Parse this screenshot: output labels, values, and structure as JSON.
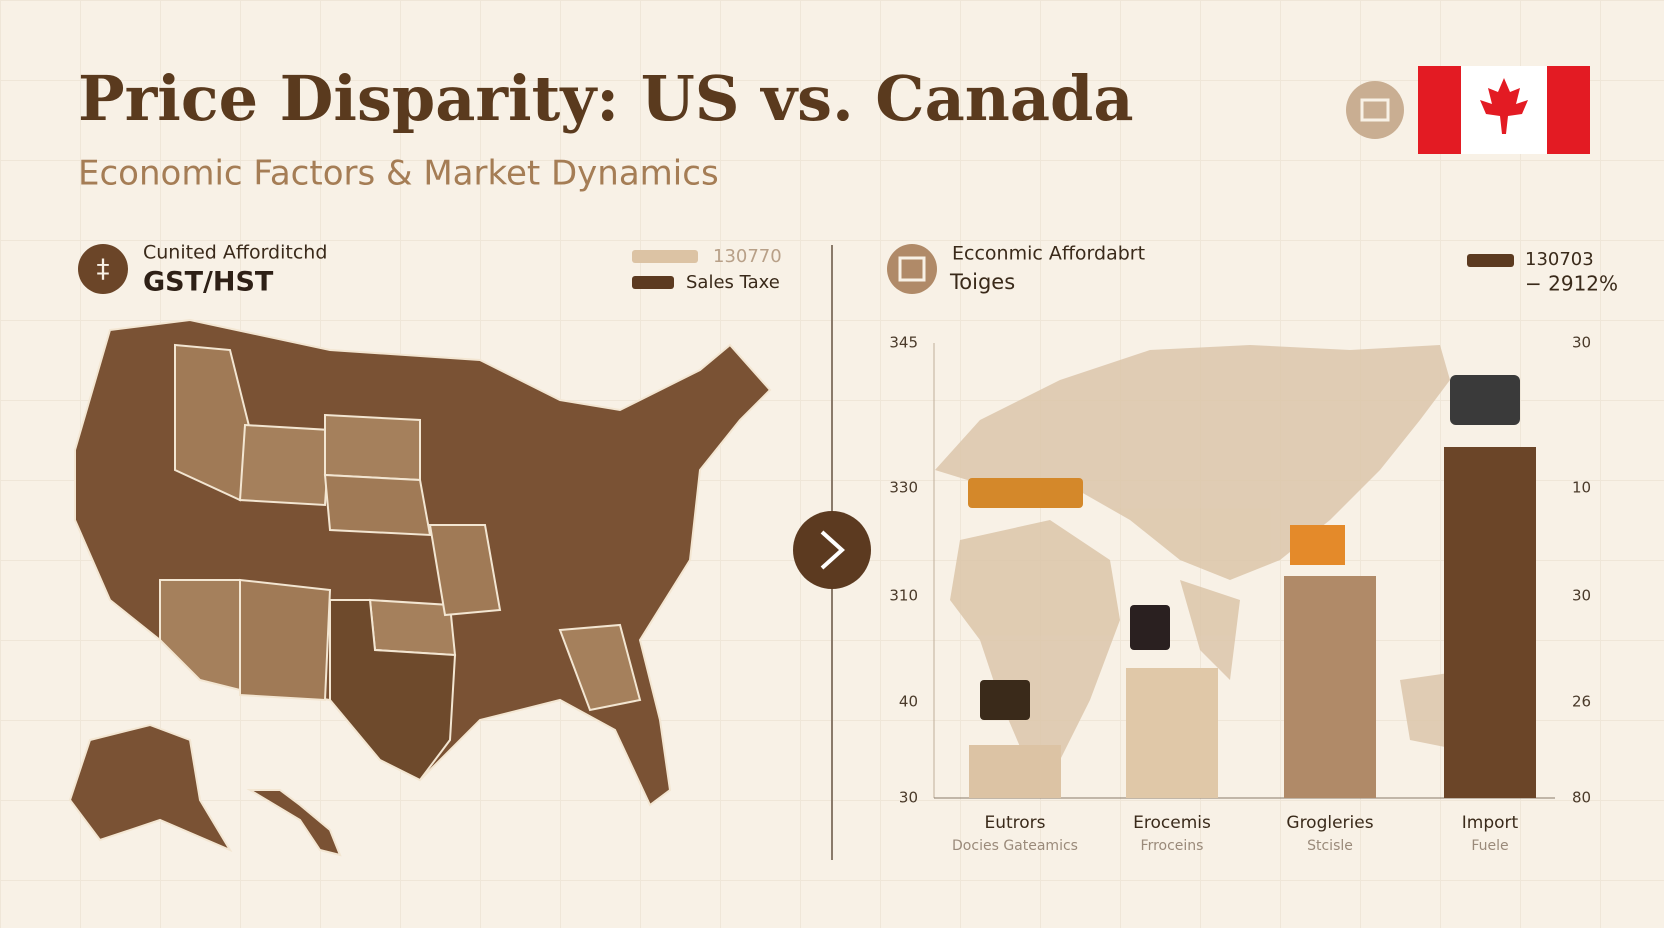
{
  "header": {
    "title": "Price Disparity: US vs. Canada",
    "subtitle": "Economic Factors & Market Dynamics"
  },
  "left_panel": {
    "label": "Cunited Afforditchd",
    "heading": "GST/HST",
    "legend": [
      "130770",
      "Sales Taxe"
    ]
  },
  "right_panel": {
    "label": "Ecconmic Affordabrt",
    "heading": "Toiges",
    "legend": [
      "130703",
      "− 2912%"
    ],
    "left_axis": [
      "345",
      "330",
      "310",
      "40",
      "30"
    ],
    "right_axis": [
      "30",
      "10",
      "30",
      "26",
      "80"
    ],
    "categories": [
      {
        "name": "Eutrors",
        "sub": "Docies Gateamics"
      },
      {
        "name": "Erocemis",
        "sub": "Frroceins"
      },
      {
        "name": "Groglerіes",
        "sub": "Stcisle"
      },
      {
        "name": "Import",
        "sub": "Fuele"
      }
    ]
  }
}
